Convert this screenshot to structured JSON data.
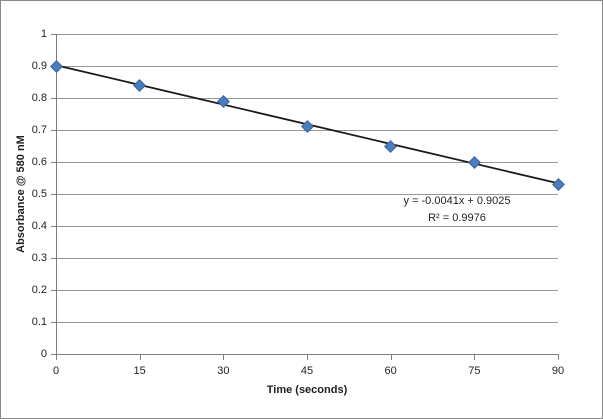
{
  "chart_data": {
    "type": "scatter",
    "x": [
      0,
      15,
      30,
      45,
      60,
      75,
      90
    ],
    "y": [
      0.9,
      0.84,
      0.79,
      0.71,
      0.65,
      0.6,
      0.53
    ],
    "xlabel": "Time (seconds)",
    "ylabel": "Absorbance @ 580 nM",
    "xlim": [
      0,
      90
    ],
    "ylim": [
      0,
      1
    ],
    "xticks": [
      0,
      15,
      30,
      45,
      60,
      75,
      90
    ],
    "xtick_labels": [
      "0",
      "15",
      "30",
      "45",
      "60",
      "75",
      "90"
    ],
    "yticks": [
      0,
      0.1,
      0.2,
      0.3,
      0.4,
      0.5,
      0.6,
      0.7,
      0.8,
      0.9,
      1
    ],
    "ytick_labels": [
      "0",
      "0.1",
      "0.2",
      "0.3",
      "0.4",
      "0.5",
      "0.6",
      "0.7",
      "0.8",
      "0.9",
      "1"
    ],
    "grid": true,
    "legend": false,
    "trendline": {
      "slope": -0.0041,
      "intercept": 0.9025,
      "equation": "y = -0.0041x + 0.9025",
      "r_squared": "R² = 0.9976"
    },
    "colors": {
      "marker_fill": "#4a7ebb",
      "marker_border": "#38629f",
      "trendline": "#1a1a1a",
      "gridline": "#979797",
      "axis": "#7f7f7f",
      "text": "#1f1f1f",
      "chart_border": "#8a8a8a",
      "background": "#ffffff"
    }
  }
}
